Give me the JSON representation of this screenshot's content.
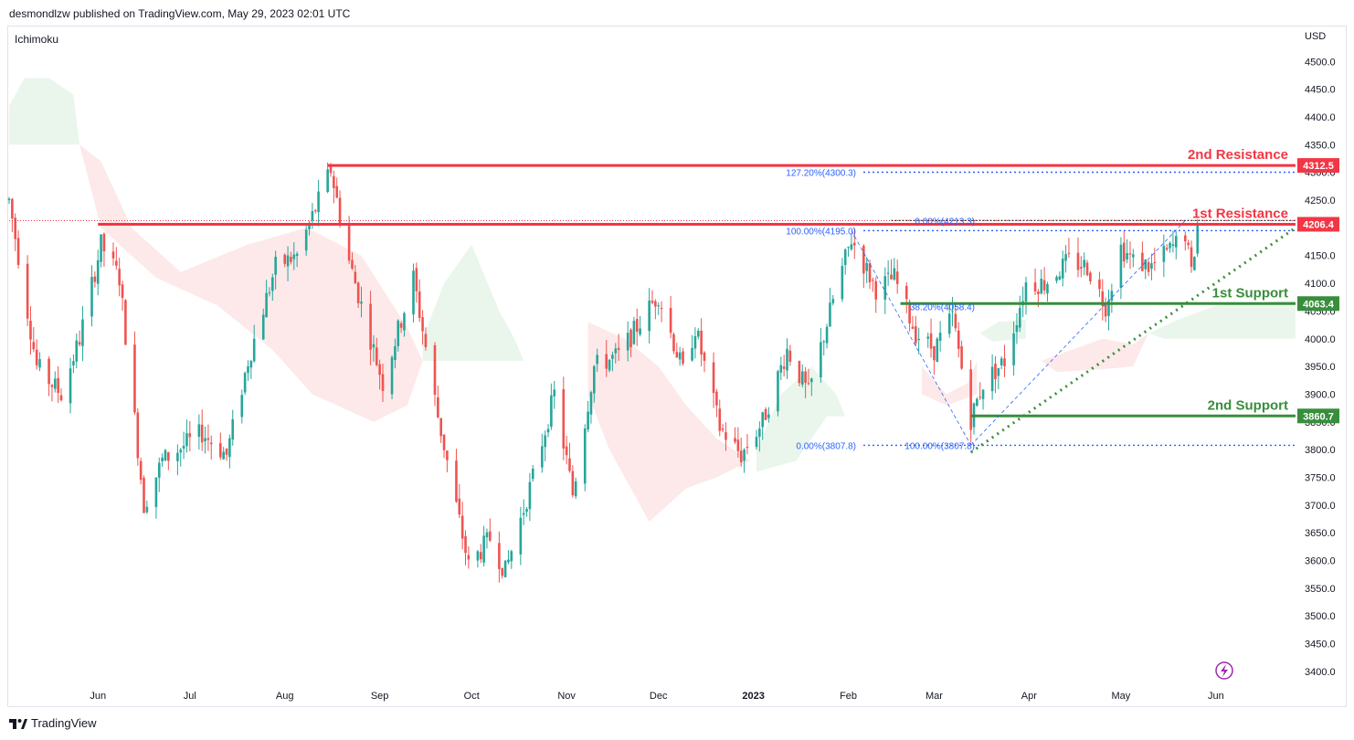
{
  "header": {
    "published_line": "desmondlzw published on TradingView.com, May 29, 2023 02:01 UTC"
  },
  "indicator": "Ichimoku",
  "currency": "USD",
  "footer": {
    "brand": "TradingView"
  },
  "colors": {
    "bull": "#26a69a",
    "bear": "#ef5350",
    "resistance": "#f23645",
    "support": "#388e3c",
    "fib": "#2962ff",
    "cloud_bull": "#e8f5e9",
    "cloud_bear": "#fde4e4"
  },
  "chart_data": {
    "type": "candlestick",
    "title": "",
    "ylabel": "USD",
    "ylim": [
      3385,
      4545
    ],
    "y_ticks": [
      "4500.0",
      "4450.0",
      "4400.0",
      "4350.0",
      "4300.0",
      "4250.0",
      "4200.0",
      "4150.0",
      "4100.0",
      "4050.0",
      "4000.0",
      "3950.0",
      "3900.0",
      "3850.0",
      "3800.0",
      "3750.0",
      "3700.0",
      "3650.0",
      "3600.0",
      "3550.0",
      "3500.0",
      "3450.0",
      "3400.0"
    ],
    "x_ticks": [
      {
        "label": "Jun",
        "date": "2022-06-01"
      },
      {
        "label": "Jul",
        "date": "2022-07-01"
      },
      {
        "label": "Aug",
        "date": "2022-08-01"
      },
      {
        "label": "Sep",
        "date": "2022-09-01"
      },
      {
        "label": "Oct",
        "date": "2022-10-01"
      },
      {
        "label": "Nov",
        "date": "2022-11-01"
      },
      {
        "label": "Dec",
        "date": "2022-12-01"
      },
      {
        "label": "2023",
        "date": "2023-01-01"
      },
      {
        "label": "Feb",
        "date": "2023-02-01"
      },
      {
        "label": "Mar",
        "date": "2023-03-01"
      },
      {
        "label": "Apr",
        "date": "2023-04-01"
      },
      {
        "label": "May",
        "date": "2023-05-01"
      },
      {
        "label": "Jun",
        "date": "2023-06-01"
      }
    ],
    "x_range": [
      "2022-05-03",
      "2023-06-27"
    ],
    "price_path": [
      [
        "2022-05-03",
        4250
      ],
      [
        "2022-05-12",
        3950
      ],
      [
        "2022-05-20",
        3900
      ],
      [
        "2022-05-26",
        4000
      ],
      [
        "2022-06-02",
        4170
      ],
      [
        "2022-06-08",
        4110
      ],
      [
        "2022-06-16",
        3700
      ],
      [
        "2022-06-22",
        3780
      ],
      [
        "2022-07-05",
        3830
      ],
      [
        "2022-07-13",
        3790
      ],
      [
        "2022-07-20",
        3960
      ],
      [
        "2022-07-29",
        4130
      ],
      [
        "2022-08-05",
        4150
      ],
      [
        "2022-08-16",
        4305
      ],
      [
        "2022-08-22",
        4140
      ],
      [
        "2022-08-26",
        4060
      ],
      [
        "2022-09-02",
        3920
      ],
      [
        "2022-09-12",
        4110
      ],
      [
        "2022-09-20",
        3860
      ],
      [
        "2022-09-30",
        3590
      ],
      [
        "2022-10-07",
        3640
      ],
      [
        "2022-10-12",
        3580
      ],
      [
        "2022-10-21",
        3750
      ],
      [
        "2022-10-28",
        3900
      ],
      [
        "2022-11-03",
        3720
      ],
      [
        "2022-11-10",
        3950
      ],
      [
        "2022-11-18",
        3970
      ],
      [
        "2022-11-25",
        4030
      ],
      [
        "2022-12-01",
        4080
      ],
      [
        "2022-12-09",
        3940
      ],
      [
        "2022-12-13",
        4020
      ],
      [
        "2022-12-21",
        3840
      ],
      [
        "2022-12-28",
        3790
      ],
      [
        "2023-01-04",
        3850
      ],
      [
        "2023-01-12",
        3980
      ],
      [
        "2023-01-19",
        3900
      ],
      [
        "2023-01-27",
        4070
      ],
      [
        "2023-02-02",
        4180
      ],
      [
        "2023-02-10",
        4090
      ],
      [
        "2023-02-16",
        4110
      ],
      [
        "2023-02-23",
        4010
      ],
      [
        "2023-03-01",
        3980
      ],
      [
        "2023-03-07",
        4040
      ],
      [
        "2023-03-13",
        3855
      ],
      [
        "2023-03-17",
        3920
      ],
      [
        "2023-03-24",
        3960
      ],
      [
        "2023-03-31",
        4100
      ],
      [
        "2023-04-06",
        4100
      ],
      [
        "2023-04-14",
        4140
      ],
      [
        "2023-04-20",
        4130
      ],
      [
        "2023-04-26",
        4060
      ],
      [
        "2023-05-01",
        4165
      ],
      [
        "2023-05-05",
        4140
      ],
      [
        "2023-05-11",
        4130
      ],
      [
        "2023-05-17",
        4160
      ],
      [
        "2023-05-22",
        4190
      ],
      [
        "2023-05-24",
        4115
      ],
      [
        "2023-05-26",
        4205
      ]
    ],
    "cloud_bull": [
      [
        [
          "2022-05-03",
          4420
        ],
        [
          "2022-05-08",
          4470
        ],
        [
          "2022-05-16",
          4470
        ],
        [
          "2022-05-24",
          4440
        ],
        [
          "2022-05-26",
          4350
        ],
        [
          "2022-05-03",
          4350
        ]
      ],
      [
        [
          "2022-09-15",
          4000
        ],
        [
          "2022-09-22",
          4100
        ],
        [
          "2022-10-01",
          4170
        ],
        [
          "2022-10-10",
          4050
        ],
        [
          "2022-10-15",
          4000
        ],
        [
          "2022-10-18",
          3960
        ],
        [
          "2022-09-15",
          3960
        ]
      ],
      [
        [
          "2023-01-02",
          3800
        ],
        [
          "2023-01-10",
          3900
        ],
        [
          "2023-01-20",
          3950
        ],
        [
          "2023-01-28",
          3900
        ],
        [
          "2023-01-31",
          3860
        ],
        [
          "2023-01-25",
          3860
        ],
        [
          "2023-01-15",
          3780
        ],
        [
          "2023-01-02",
          3760
        ]
      ],
      [
        [
          "2023-03-16",
          4010
        ],
        [
          "2023-03-22",
          4030
        ],
        [
          "2023-03-31",
          4035
        ],
        [
          "2023-03-31",
          4000
        ],
        [
          "2023-03-20",
          3995
        ]
      ],
      [
        [
          "2023-05-10",
          4010
        ],
        [
          "2023-05-20",
          4035
        ],
        [
          "2023-06-01",
          4060
        ],
        [
          "2023-06-27",
          4070
        ],
        [
          "2023-06-27",
          4000
        ],
        [
          "2023-06-01",
          4000
        ],
        [
          "2023-05-15",
          4000
        ]
      ]
    ],
    "cloud_bear": [
      [
        [
          "2022-05-26",
          4350
        ],
        [
          "2022-06-02",
          4320
        ],
        [
          "2022-06-12",
          4200
        ],
        [
          "2022-06-28",
          4120
        ],
        [
          "2022-07-20",
          4170
        ],
        [
          "2022-08-08",
          4200
        ],
        [
          "2022-08-26",
          4150
        ],
        [
          "2022-09-10",
          4020
        ],
        [
          "2022-09-15",
          3960
        ],
        [
          "2022-09-10",
          3880
        ],
        [
          "2022-08-30",
          3850
        ],
        [
          "2022-08-10",
          3900
        ],
        [
          "2022-07-28",
          3980
        ],
        [
          "2022-07-10",
          4060
        ],
        [
          "2022-06-20",
          4110
        ],
        [
          "2022-06-02",
          4200
        ],
        [
          "2022-05-26",
          4350
        ]
      ],
      [
        [
          "2022-11-08",
          4030
        ],
        [
          "2022-11-20",
          4000
        ],
        [
          "2022-12-01",
          3950
        ],
        [
          "2022-12-10",
          3880
        ],
        [
          "2022-12-20",
          3820
        ],
        [
          "2022-12-31",
          3780
        ],
        [
          "2022-12-20",
          3750
        ],
        [
          "2022-12-10",
          3730
        ],
        [
          "2022-11-28",
          3670
        ],
        [
          "2022-11-15",
          3800
        ],
        [
          "2022-11-08",
          3900
        ]
      ],
      [
        [
          "2023-02-25",
          3950
        ],
        [
          "2023-03-05",
          3900
        ],
        [
          "2023-03-12",
          3920
        ],
        [
          "2023-03-15",
          3960
        ],
        [
          "2023-03-15",
          3900
        ],
        [
          "2023-03-05",
          3880
        ],
        [
          "2023-02-25",
          3900
        ]
      ],
      [
        [
          "2023-04-05",
          3960
        ],
        [
          "2023-04-15",
          3980
        ],
        [
          "2023-04-25",
          4000
        ],
        [
          "2023-05-05",
          3990
        ],
        [
          "2023-05-10",
          4010
        ],
        [
          "2023-05-05",
          3950
        ],
        [
          "2023-04-25",
          3945
        ],
        [
          "2023-04-10",
          3940
        ]
      ]
    ],
    "levels": [
      {
        "name": "2nd Resistance",
        "price": 4312.5,
        "color": "#f23645",
        "from": "2022-08-15",
        "tag": "4312.5"
      },
      {
        "name": "1st Resistance",
        "price": 4206.4,
        "color": "#f23645",
        "from": "2022-06-01",
        "tag": "4206.4"
      },
      {
        "name": "1st Support",
        "price": 4063.4,
        "color": "#388e3c",
        "from": "2023-02-18",
        "tag": "4063.4"
      },
      {
        "name": "2nd Support",
        "price": 3860.7,
        "color": "#388e3c",
        "from": "2023-03-13",
        "tag": "3860.7"
      }
    ],
    "fib_left": [
      {
        "label": "127.20%(4300.3)",
        "price": 4300.3
      },
      {
        "label": "100.00%(4195.0)",
        "price": 4195.0
      },
      {
        "label": "0.00%(3807.8)",
        "price": 3807.8
      }
    ],
    "fib_right": [
      {
        "label": "0.00%(4213.3)",
        "price": 4213.3
      },
      {
        "label": "38.20%(4058.4)",
        "price": 4058.4
      },
      {
        "label": "100.00%(3807.8)",
        "price": 3807.8
      }
    ]
  }
}
